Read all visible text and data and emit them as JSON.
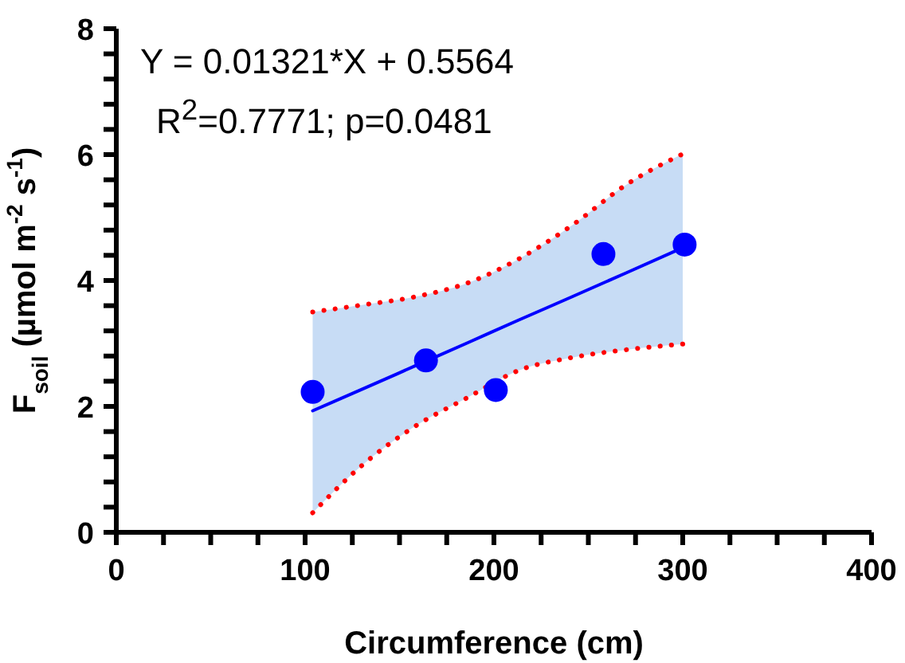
{
  "chart_data": {
    "type": "scatter",
    "xlabel": "Circumference (cm)",
    "ylabel": "F$_{soil}$ (µmol m$^{-2}$ s$^{-1}$)",
    "annotations": [
      "Y = 0.01321*X + 0.5564",
      "R$^{2}$=0.7771; p=0.0481"
    ],
    "xlim": [
      0,
      400
    ],
    "ylim": [
      0,
      8
    ],
    "xticks": [
      0,
      {
        "value": 25,
        "label": null
      },
      {
        "value": 50,
        "label": null
      },
      {
        "value": 75,
        "label": null
      },
      100,
      {
        "value": 125,
        "label": null
      },
      {
        "value": 150,
        "label": null
      },
      {
        "value": 175,
        "label": null
      },
      200,
      {
        "value": 225,
        "label": null
      },
      {
        "value": 250,
        "label": null
      },
      {
        "value": 275,
        "label": null
      },
      300,
      {
        "value": 325,
        "label": null
      },
      {
        "value": 350,
        "label": null
      },
      {
        "value": 375,
        "label": null
      },
      400
    ],
    "yticks": [
      0,
      {
        "value": 0.4,
        "label": null
      },
      {
        "value": 0.8,
        "label": null
      },
      {
        "value": 1.2,
        "label": null
      },
      {
        "value": 1.6,
        "label": null
      },
      2,
      {
        "value": 2.4,
        "label": null
      },
      {
        "value": 2.8,
        "label": null
      },
      {
        "value": 3.2,
        "label": null
      },
      {
        "value": 3.6,
        "label": null
      },
      4,
      {
        "value": 4.4,
        "label": null
      },
      {
        "value": 4.8,
        "label": null
      },
      {
        "value": 5.2,
        "label": null
      },
      {
        "value": 5.6,
        "label": null
      },
      6,
      {
        "value": 6.4,
        "label": null
      },
      {
        "value": 6.8,
        "label": null
      },
      {
        "value": 7.2,
        "label": null
      },
      {
        "value": 7.6,
        "label": null
      },
      8
    ],
    "grid": false,
    "series": [
      {
        "type": "line",
        "color": "#0000ff",
        "marker": "none",
        "line_style": "solid",
        "x": [
          104,
          130,
          158,
          186,
          213,
          242,
          270,
          300
        ],
        "values": [
          1.93,
          2.27,
          2.64,
          3.01,
          3.37,
          3.75,
          4.12,
          4.52
        ],
        "lower": [
          0.31,
          1.06,
          1.68,
          2.14,
          2.57,
          2.78,
          2.9,
          2.99
        ],
        "upper": [
          3.5,
          3.61,
          3.74,
          3.96,
          4.34,
          4.89,
          5.52,
          6.01
        ]
      },
      {
        "type": "line",
        "color": "#ff0000",
        "marker": "none",
        "line_style": "dotted",
        "x": [
          104,
          130,
          158,
          186,
          213,
          242,
          270,
          300
        ],
        "values": [
          0.31,
          1.06,
          1.68,
          2.14,
          2.57,
          2.78,
          2.9,
          2.99
        ]
      },
      {
        "type": "line",
        "color": "#ff0000",
        "marker": "none",
        "line_style": "dotted",
        "x": [
          104,
          130,
          158,
          186,
          213,
          242,
          270,
          300
        ],
        "values": [
          3.5,
          3.61,
          3.74,
          3.96,
          4.34,
          4.89,
          5.52,
          6.01
        ]
      },
      {
        "color": "#0000ff",
        "marker": "circle",
        "x": [
          104,
          164,
          201,
          258,
          301
        ],
        "values": [
          2.23,
          2.73,
          2.26,
          4.42,
          4.57
        ]
      }
    ]
  }
}
